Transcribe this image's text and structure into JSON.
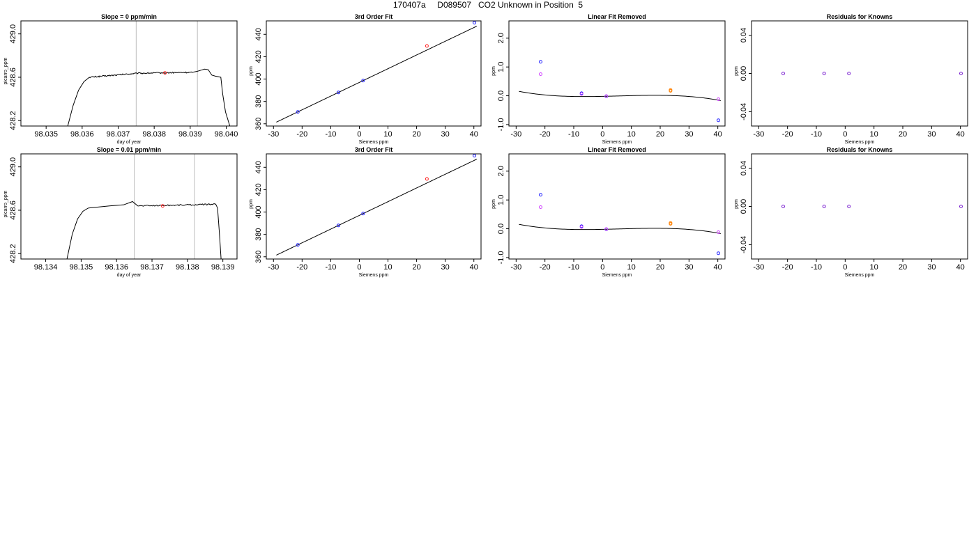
{
  "figure": {
    "title": "170407a     D089507   CO2 Unknown in Position  5"
  },
  "colors": {
    "blue": "#2020ff",
    "red": "#ff2020",
    "orange": "#ff8000",
    "magenta": "#d040ff",
    "purple": "#7a1fd0",
    "line": "#000000",
    "vline": "#bbbbbb"
  },
  "chart_data": [
    {
      "id": "ts1",
      "type": "line",
      "title": "Slope =  0  ppm/min",
      "xlabel": "day of year",
      "ylabel": "picarro_ppm",
      "xlim": [
        98.0343,
        98.0403
      ],
      "ylim": [
        428.15,
        429.12
      ],
      "xticks": [
        98.035,
        98.036,
        98.037,
        98.038,
        98.039,
        98.04
      ],
      "xtick_labels": [
        "98.035",
        "98.036",
        "98.037",
        "98.038",
        "98.039",
        "98.040"
      ],
      "yticks": [
        428.2,
        428.6,
        429.0
      ],
      "ytick_labels": [
        "428.2",
        "428.6",
        "429.0"
      ],
      "vlines": [
        98.0375,
        98.0392
      ],
      "marker": {
        "x": 98.0383,
        "y": 428.64,
        "color": "red"
      },
      "segments": [
        {
          "x": [
            98.0356,
            98.03575,
            98.0359,
            98.03605,
            98.0362
          ],
          "y": [
            428.15,
            428.34,
            428.48,
            428.56,
            428.6
          ]
        },
        {
          "x": [
            98.0362,
            98.03755
          ],
          "y": [
            428.6,
            428.637
          ],
          "noise": 0.006
        },
        {
          "x": [
            98.03755,
            98.03905
          ],
          "y": [
            428.637,
            428.645
          ],
          "noise": 0.006
        },
        {
          "x": [
            98.03905,
            98.0392,
            98.0393,
            98.0394,
            98.0395,
            98.0396,
            98.0397
          ],
          "y": [
            428.645,
            428.655,
            428.665,
            428.675,
            428.67,
            428.62,
            428.61
          ]
        },
        {
          "x": [
            98.0397,
            98.03985,
            98.0399,
            98.03998,
            98.0401
          ],
          "y": [
            428.61,
            428.6,
            428.45,
            428.28,
            428.15
          ]
        }
      ]
    },
    {
      "id": "fit1",
      "type": "scatter",
      "title": "3rd Order Fit",
      "xlabel": "Siemens ppm",
      "ylabel": "ppm",
      "xlim": [
        -32.5,
        42.5
      ],
      "ylim": [
        358,
        452
      ],
      "xticks": [
        -30,
        -20,
        -10,
        0,
        10,
        20,
        30,
        40
      ],
      "xtick_labels": [
        "-30",
        "-20",
        "-10",
        "0",
        "10",
        "20",
        "30",
        "40"
      ],
      "yticks": [
        360,
        380,
        400,
        420,
        440
      ],
      "ytick_labels": [
        "360",
        "380",
        "400",
        "420",
        "440"
      ],
      "curve": {
        "x0": -29,
        "x1": 41,
        "slope": 1.226,
        "intercept": 397.0
      },
      "points": [
        {
          "x": -21.5,
          "y": 370.6,
          "color": "blue"
        },
        {
          "x": -7.3,
          "y": 388.0,
          "color": "blue"
        },
        {
          "x": 1.3,
          "y": 398.6,
          "color": "blue"
        },
        {
          "x": 40.2,
          "y": 450.4,
          "color": "blue"
        },
        {
          "x": 23.6,
          "y": 429.6,
          "color": "red"
        }
      ]
    },
    {
      "id": "lin1",
      "type": "scatter",
      "title": "Linear Fit Removed",
      "xlabel": "Siemens ppm",
      "ylabel": "ppm",
      "xlim": [
        -32.5,
        42.5
      ],
      "ylim": [
        -1.05,
        2.6
      ],
      "xticks": [
        -30,
        -20,
        -10,
        0,
        10,
        20,
        30,
        40
      ],
      "xtick_labels": [
        "-30",
        "-20",
        "-10",
        "0",
        "10",
        "20",
        "30",
        "40"
      ],
      "yticks": [
        -1.0,
        0.0,
        1.0,
        2.0
      ],
      "ytick_labels": [
        "-1.0",
        "0.0",
        "1.0",
        "2.0"
      ],
      "curve": {
        "x0": -29,
        "x1": 41,
        "coeffs": [
          -0.0199,
          0.00204,
          0.000105,
          -5.9e-06
        ]
      },
      "points": [
        {
          "x": -21.5,
          "y": 1.18,
          "color": "blue"
        },
        {
          "x": -7.3,
          "y": 0.09,
          "color": "blue"
        },
        {
          "x": 1.3,
          "y": -0.02,
          "color": "blue"
        },
        {
          "x": 40.2,
          "y": -0.85,
          "color": "blue"
        },
        {
          "x": -21.5,
          "y": 0.75,
          "color": "magenta"
        },
        {
          "x": -7.3,
          "y": 0.06,
          "color": "magenta"
        },
        {
          "x": 1.3,
          "y": -0.01,
          "color": "magenta"
        },
        {
          "x": 40.2,
          "y": -0.12,
          "color": "magenta"
        },
        {
          "x": 23.6,
          "y": 0.17,
          "color": "orange"
        },
        {
          "x": 23.6,
          "y": 0.2,
          "color": "orange"
        }
      ]
    },
    {
      "id": "res1",
      "type": "scatter",
      "title": "Residuals for Knowns",
      "xlabel": "Siemens ppm",
      "ylabel": "ppm",
      "xlim": [
        -32.5,
        42.5
      ],
      "ylim": [
        -0.055,
        0.055
      ],
      "xticks": [
        -30,
        -20,
        -10,
        0,
        10,
        20,
        30,
        40
      ],
      "xtick_labels": [
        "-30",
        "-20",
        "-10",
        "0",
        "10",
        "20",
        "30",
        "40"
      ],
      "yticks": [
        -0.04,
        0.0,
        0.04
      ],
      "ytick_labels": [
        "-0.04",
        "0.00",
        "0.04"
      ],
      "points": [
        {
          "x": -21.5,
          "y": 0.0,
          "color": "purple"
        },
        {
          "x": -7.3,
          "y": 0.0,
          "color": "purple"
        },
        {
          "x": 1.3,
          "y": 0.0,
          "color": "purple"
        },
        {
          "x": 40.2,
          "y": 0.0,
          "color": "purple"
        }
      ]
    },
    {
      "id": "ts2",
      "type": "line",
      "title": "Slope =  0.01  ppm/min",
      "xlabel": "day of year",
      "ylabel": "picarro_ppm",
      "xlim": [
        98.1333,
        98.1394
      ],
      "ylim": [
        428.15,
        429.12
      ],
      "xticks": [
        98.134,
        98.135,
        98.136,
        98.137,
        98.138,
        98.139
      ],
      "xtick_labels": [
        "98.134",
        "98.135",
        "98.136",
        "98.137",
        "98.138",
        "98.139"
      ],
      "yticks": [
        428.2,
        428.6,
        429.0
      ],
      "ytick_labels": [
        "428.2",
        "428.6",
        "429.0"
      ],
      "vlines": [
        98.1365,
        98.1382
      ],
      "marker": {
        "x": 98.1373,
        "y": 428.64,
        "color": "red"
      },
      "segments": [
        {
          "x": [
            98.1346,
            98.13475,
            98.1349,
            98.13505,
            98.1352
          ],
          "y": [
            428.15,
            428.38,
            428.52,
            428.59,
            428.62
          ]
        },
        {
          "x": [
            98.1352,
            98.1358,
            98.1362,
            98.13645,
            98.1366
          ],
          "y": [
            428.62,
            428.64,
            428.65,
            428.68,
            428.64
          ]
        },
        {
          "x": [
            98.1366,
            98.1388
          ],
          "y": [
            428.64,
            428.655
          ],
          "noise": 0.006
        },
        {
          "x": [
            98.1388,
            98.13885,
            98.1389,
            98.13895
          ],
          "y": [
            428.655,
            428.62,
            428.4,
            428.15
          ]
        }
      ]
    },
    {
      "id": "fit2",
      "type": "scatter",
      "title": "3rd Order Fit",
      "xlabel": "Siemens ppm",
      "ylabel": "ppm",
      "xlim": [
        -32.5,
        42.5
      ],
      "ylim": [
        358,
        452
      ],
      "xticks": [
        -30,
        -20,
        -10,
        0,
        10,
        20,
        30,
        40
      ],
      "xtick_labels": [
        "-30",
        "-20",
        "-10",
        "0",
        "10",
        "20",
        "30",
        "40"
      ],
      "yticks": [
        360,
        380,
        400,
        420,
        440
      ],
      "ytick_labels": [
        "360",
        "380",
        "400",
        "420",
        "440"
      ],
      "curve": {
        "x0": -29,
        "x1": 41,
        "slope": 1.226,
        "intercept": 397.0
      },
      "points": [
        {
          "x": -21.5,
          "y": 370.6,
          "color": "blue"
        },
        {
          "x": -7.3,
          "y": 388.0,
          "color": "blue"
        },
        {
          "x": 1.3,
          "y": 398.6,
          "color": "blue"
        },
        {
          "x": 40.2,
          "y": 450.4,
          "color": "blue"
        },
        {
          "x": 23.6,
          "y": 429.6,
          "color": "red"
        }
      ]
    },
    {
      "id": "lin2",
      "type": "scatter",
      "title": "Linear Fit Removed",
      "xlabel": "Siemens ppm",
      "ylabel": "ppm",
      "xlim": [
        -32.5,
        42.5
      ],
      "ylim": [
        -1.05,
        2.6
      ],
      "xticks": [
        -30,
        -20,
        -10,
        0,
        10,
        20,
        30,
        40
      ],
      "xtick_labels": [
        "-30",
        "-20",
        "-10",
        "0",
        "10",
        "20",
        "30",
        "40"
      ],
      "yticks": [
        -1.0,
        0.0,
        1.0,
        2.0
      ],
      "ytick_labels": [
        "-1.0",
        "0.0",
        "1.0",
        "2.0"
      ],
      "curve": {
        "x0": -29,
        "x1": 41,
        "coeffs": [
          -0.0199,
          0.00204,
          0.000105,
          -5.9e-06
        ]
      },
      "points": [
        {
          "x": -21.5,
          "y": 1.18,
          "color": "blue"
        },
        {
          "x": -7.3,
          "y": 0.09,
          "color": "blue"
        },
        {
          "x": 1.3,
          "y": -0.02,
          "color": "blue"
        },
        {
          "x": 40.2,
          "y": -0.85,
          "color": "blue"
        },
        {
          "x": -21.5,
          "y": 0.75,
          "color": "magenta"
        },
        {
          "x": -7.3,
          "y": 0.06,
          "color": "magenta"
        },
        {
          "x": 1.3,
          "y": -0.01,
          "color": "magenta"
        },
        {
          "x": 40.2,
          "y": -0.12,
          "color": "magenta"
        },
        {
          "x": 23.6,
          "y": 0.17,
          "color": "orange"
        },
        {
          "x": 23.6,
          "y": 0.2,
          "color": "orange"
        }
      ]
    },
    {
      "id": "res2",
      "type": "scatter",
      "title": "Residuals for Knowns",
      "xlabel": "Siemens ppm",
      "ylabel": "ppm",
      "xlim": [
        -32.5,
        42.5
      ],
      "ylim": [
        -0.055,
        0.055
      ],
      "xticks": [
        -30,
        -20,
        -10,
        0,
        10,
        20,
        30,
        40
      ],
      "xtick_labels": [
        "-30",
        "-20",
        "-10",
        "0",
        "10",
        "20",
        "30",
        "40"
      ],
      "yticks": [
        -0.04,
        0.0,
        0.04
      ],
      "ytick_labels": [
        "-0.04",
        "0.00",
        "0.04"
      ],
      "points": [
        {
          "x": -21.5,
          "y": 0.0,
          "color": "purple"
        },
        {
          "x": -7.3,
          "y": 0.0,
          "color": "purple"
        },
        {
          "x": 1.3,
          "y": 0.0,
          "color": "purple"
        },
        {
          "x": 40.2,
          "y": 0.0,
          "color": "purple"
        }
      ]
    }
  ]
}
